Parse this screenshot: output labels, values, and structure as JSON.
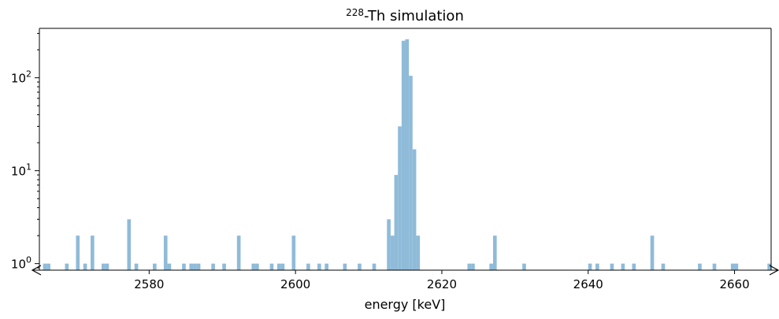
{
  "chart_data": {
    "type": "bar",
    "title_prefix": "228",
    "title_suffix": "-Th simulation",
    "xlabel": "energy [keV]",
    "ylabel": "",
    "x_ticks": [
      2580,
      2600,
      2620,
      2640,
      2660
    ],
    "y_ticks": [
      {
        "value": 1,
        "base": "10",
        "exp": "0"
      },
      {
        "value": 10,
        "base": "10",
        "exp": "1"
      },
      {
        "value": 100,
        "base": "10",
        "exp": "2"
      }
    ],
    "xlim": [
      2565,
      2665
    ],
    "ylim": [
      0.85,
      340
    ],
    "y_scale": "log",
    "bin_width": 0.5,
    "bar_color": "#8fbbd9",
    "grid": false,
    "bins": [
      {
        "x": 2565.5,
        "y": 1
      },
      {
        "x": 2566.0,
        "y": 1
      },
      {
        "x": 2568.5,
        "y": 1
      },
      {
        "x": 2570.0,
        "y": 2
      },
      {
        "x": 2571.0,
        "y": 1
      },
      {
        "x": 2572.0,
        "y": 2
      },
      {
        "x": 2573.5,
        "y": 1
      },
      {
        "x": 2574.0,
        "y": 1
      },
      {
        "x": 2577.0,
        "y": 3
      },
      {
        "x": 2578.0,
        "y": 1
      },
      {
        "x": 2580.5,
        "y": 1
      },
      {
        "x": 2582.0,
        "y": 2
      },
      {
        "x": 2582.5,
        "y": 1
      },
      {
        "x": 2584.5,
        "y": 1
      },
      {
        "x": 2585.5,
        "y": 1
      },
      {
        "x": 2586.0,
        "y": 1
      },
      {
        "x": 2586.5,
        "y": 1
      },
      {
        "x": 2588.5,
        "y": 1
      },
      {
        "x": 2590.0,
        "y": 1
      },
      {
        "x": 2592.0,
        "y": 2
      },
      {
        "x": 2594.0,
        "y": 1
      },
      {
        "x": 2594.5,
        "y": 1
      },
      {
        "x": 2596.5,
        "y": 1
      },
      {
        "x": 2597.5,
        "y": 1
      },
      {
        "x": 2598.0,
        "y": 1
      },
      {
        "x": 2599.5,
        "y": 2
      },
      {
        "x": 2601.5,
        "y": 1
      },
      {
        "x": 2603.0,
        "y": 1
      },
      {
        "x": 2604.0,
        "y": 1
      },
      {
        "x": 2606.5,
        "y": 1
      },
      {
        "x": 2608.5,
        "y": 1
      },
      {
        "x": 2610.5,
        "y": 1
      },
      {
        "x": 2612.5,
        "y": 3
      },
      {
        "x": 2613.0,
        "y": 2
      },
      {
        "x": 2613.5,
        "y": 9
      },
      {
        "x": 2614.0,
        "y": 30
      },
      {
        "x": 2614.5,
        "y": 250
      },
      {
        "x": 2615.0,
        "y": 260
      },
      {
        "x": 2615.5,
        "y": 105
      },
      {
        "x": 2616.0,
        "y": 17
      },
      {
        "x": 2616.5,
        "y": 2
      },
      {
        "x": 2623.5,
        "y": 1
      },
      {
        "x": 2624.0,
        "y": 1
      },
      {
        "x": 2626.5,
        "y": 1
      },
      {
        "x": 2627.0,
        "y": 2
      },
      {
        "x": 2631.0,
        "y": 1
      },
      {
        "x": 2640.0,
        "y": 1
      },
      {
        "x": 2641.0,
        "y": 1
      },
      {
        "x": 2643.0,
        "y": 1
      },
      {
        "x": 2644.5,
        "y": 1
      },
      {
        "x": 2646.0,
        "y": 1
      },
      {
        "x": 2648.5,
        "y": 2
      },
      {
        "x": 2650.0,
        "y": 1
      },
      {
        "x": 2655.0,
        "y": 1
      },
      {
        "x": 2657.0,
        "y": 1
      },
      {
        "x": 2659.5,
        "y": 1
      },
      {
        "x": 2660.0,
        "y": 1
      },
      {
        "x": 2664.5,
        "y": 1
      }
    ]
  }
}
